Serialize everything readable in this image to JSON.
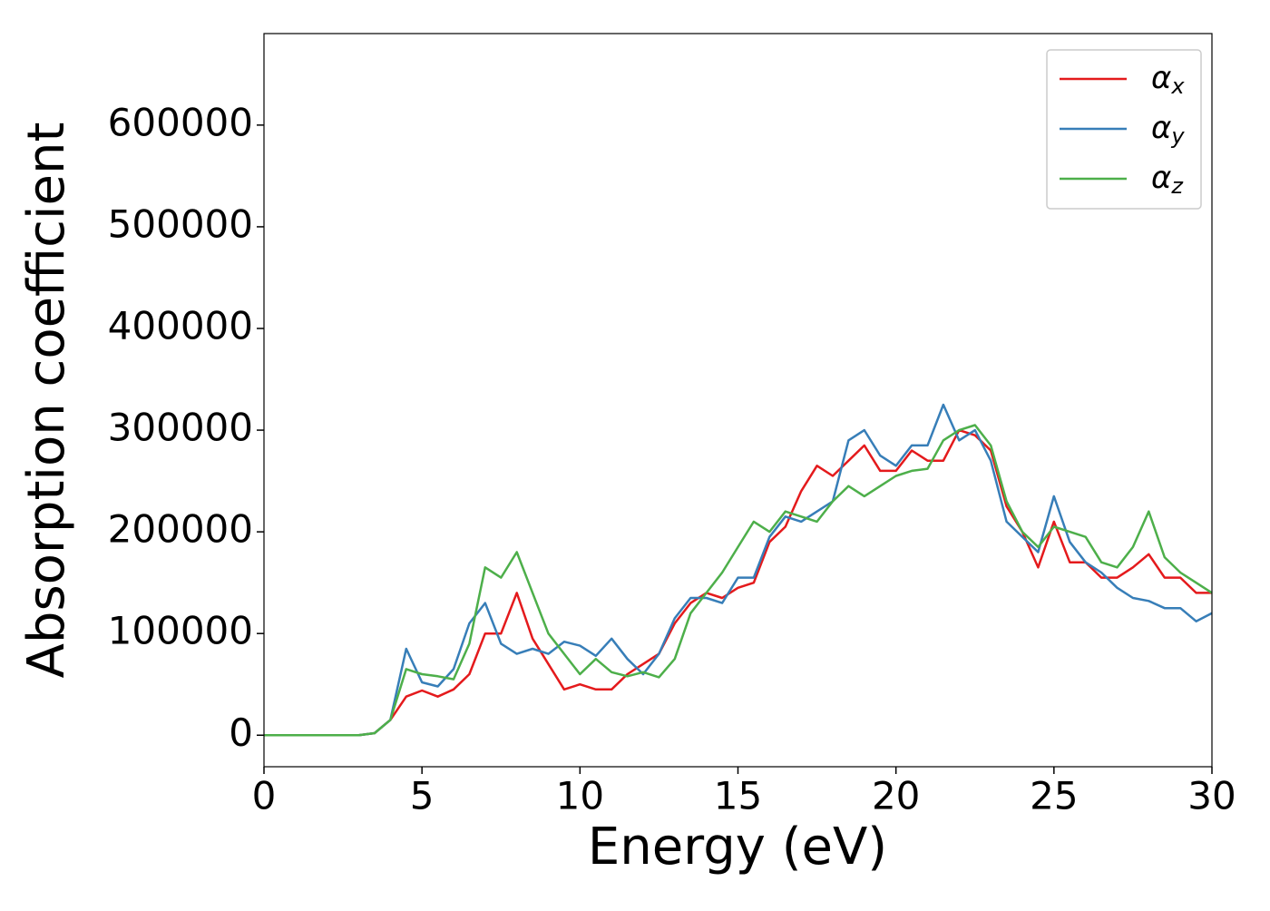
{
  "chart_data": {
    "type": "line",
    "xlabel": "Energy (eV)",
    "ylabel": "Absorption coefficient",
    "x": [
      0,
      0.5,
      1,
      1.5,
      2,
      2.5,
      3,
      3.5,
      4,
      4.5,
      5,
      5.5,
      6,
      6.5,
      7,
      7.5,
      8,
      8.5,
      9,
      9.5,
      10,
      10.5,
      11,
      11.5,
      12,
      12.5,
      13,
      13.5,
      14,
      14.5,
      15,
      15.5,
      16,
      16.5,
      17,
      17.5,
      18,
      18.5,
      19,
      19.5,
      20,
      20.5,
      21,
      21.5,
      22,
      22.5,
      23,
      23.5,
      24,
      24.5,
      25,
      25.5,
      26,
      26.5,
      27,
      27.5,
      28,
      28.5,
      29,
      29.5,
      30
    ],
    "series": [
      {
        "name": "αx",
        "color": "#e41a1c",
        "values": [
          0,
          0,
          0,
          0,
          0,
          0,
          0,
          2000,
          15000,
          38000,
          44000,
          38000,
          45000,
          60000,
          100000,
          100000,
          140000,
          95000,
          70000,
          45000,
          50000,
          45000,
          45000,
          60000,
          70000,
          80000,
          110000,
          130000,
          140000,
          135000,
          145000,
          150000,
          190000,
          205000,
          240000,
          265000,
          255000,
          270000,
          285000,
          260000,
          260000,
          280000,
          270000,
          270000,
          300000,
          295000,
          280000,
          225000,
          200000,
          165000,
          210000,
          170000,
          170000,
          155000,
          155000,
          165000,
          178000,
          155000,
          155000,
          140000,
          140000
        ]
      },
      {
        "name": "αy",
        "color": "#377eb8",
        "values": [
          0,
          0,
          0,
          0,
          0,
          0,
          0,
          2000,
          15000,
          85000,
          52000,
          48000,
          65000,
          110000,
          130000,
          90000,
          80000,
          85000,
          80000,
          92000,
          88000,
          78000,
          95000,
          75000,
          60000,
          80000,
          115000,
          135000,
          135000,
          130000,
          155000,
          155000,
          195000,
          215000,
          210000,
          220000,
          230000,
          290000,
          300000,
          275000,
          265000,
          285000,
          285000,
          325000,
          290000,
          300000,
          270000,
          210000,
          195000,
          180000,
          235000,
          190000,
          170000,
          160000,
          145000,
          135000,
          132000,
          125000,
          125000,
          112000,
          120000
        ]
      },
      {
        "name": "αz",
        "color": "#4daf4a",
        "values": [
          0,
          0,
          0,
          0,
          0,
          0,
          0,
          2000,
          15000,
          65000,
          60000,
          58000,
          55000,
          90000,
          165000,
          155000,
          180000,
          140000,
          100000,
          80000,
          60000,
          75000,
          62000,
          58000,
          62000,
          57000,
          75000,
          120000,
          140000,
          160000,
          185000,
          210000,
          200000,
          220000,
          215000,
          210000,
          230000,
          245000,
          235000,
          245000,
          255000,
          260000,
          262000,
          290000,
          300000,
          305000,
          285000,
          230000,
          200000,
          185000,
          205000,
          200000,
          195000,
          170000,
          165000,
          185000,
          220000,
          175000,
          160000,
          150000,
          140000
        ]
      }
    ],
    "xlim": [
      0,
      30
    ],
    "xticks": [
      0,
      5,
      10,
      15,
      20,
      25,
      30
    ],
    "ylim": [
      -31000,
      690000
    ],
    "yticks": [
      0,
      100000,
      200000,
      300000,
      400000,
      500000,
      600000
    ],
    "legend": "upper right"
  }
}
